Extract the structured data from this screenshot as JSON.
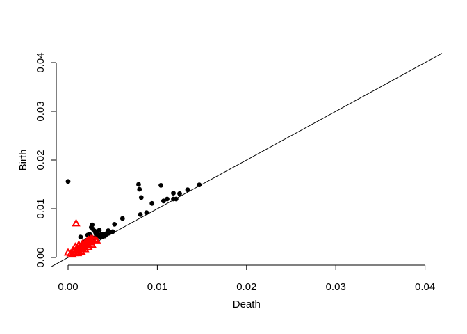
{
  "chart_data": {
    "type": "scatter",
    "title": "",
    "xlabel": "Death",
    "ylabel": "Birth",
    "xlim": [
      0,
      0.04
    ],
    "ylim": [
      0,
      0.04
    ],
    "x_ticks": [
      "0.00",
      "0.01",
      "0.02",
      "0.03",
      "0.04"
    ],
    "y_ticks": [
      "0.00",
      "0.01",
      "0.02",
      "0.03",
      "0.04"
    ],
    "grid": false,
    "legend": null,
    "diagonal_line": {
      "from": [
        0,
        0
      ],
      "to": [
        0.04,
        0.04
      ]
    },
    "series": [
      {
        "marker": "filled-circle",
        "color": "#000000",
        "points": [
          [
            0.0,
            0.0156
          ],
          [
            0.0079,
            0.015
          ],
          [
            0.008,
            0.014
          ],
          [
            0.0082,
            0.0123
          ],
          [
            0.0104,
            0.0148
          ],
          [
            0.0111,
            0.012
          ],
          [
            0.0118,
            0.0132
          ],
          [
            0.0118,
            0.012
          ],
          [
            0.0121,
            0.012
          ],
          [
            0.0125,
            0.0131
          ],
          [
            0.0134,
            0.0139
          ],
          [
            0.0147,
            0.0149
          ],
          [
            0.0107,
            0.0116
          ],
          [
            0.0094,
            0.0111
          ],
          [
            0.0088,
            0.0092
          ],
          [
            0.0081,
            0.0088
          ],
          [
            0.0061,
            0.008
          ],
          [
            0.0052,
            0.0068
          ],
          [
            0.0045,
            0.0055
          ],
          [
            0.004,
            0.0048
          ],
          [
            0.0027,
            0.0067
          ],
          [
            0.0026,
            0.0062
          ],
          [
            0.0028,
            0.0058
          ],
          [
            0.003,
            0.0054
          ],
          [
            0.0035,
            0.0056
          ],
          [
            0.0033,
            0.005
          ],
          [
            0.0024,
            0.0048
          ],
          [
            0.0022,
            0.0046
          ],
          [
            0.0038,
            0.0045
          ],
          [
            0.0042,
            0.0046
          ],
          [
            0.0046,
            0.005
          ],
          [
            0.0048,
            0.0052
          ],
          [
            0.005,
            0.0053
          ],
          [
            0.0036,
            0.0042
          ],
          [
            0.0039,
            0.0043
          ],
          [
            0.0032,
            0.0043
          ],
          [
            0.0029,
            0.004
          ],
          [
            0.0025,
            0.0037
          ],
          [
            0.0014,
            0.0042
          ],
          [
            0.002,
            0.0035
          ],
          [
            0.0017,
            0.0031
          ],
          [
            0.0043,
            0.0049
          ],
          [
            0.0037,
            0.0047
          ],
          [
            0.0034,
            0.0046
          ],
          [
            0.0031,
            0.0049
          ],
          [
            0.0041,
            0.0044
          ]
        ]
      },
      {
        "marker": "open-triangle",
        "color": "#ff0000",
        "points": [
          [
            0.0009,
            0.007
          ],
          [
            0.0,
            0.001
          ],
          [
            0.0005,
            0.0006
          ],
          [
            0.0007,
            0.0009
          ],
          [
            0.0009,
            0.0011
          ],
          [
            0.001,
            0.0015
          ],
          [
            0.0011,
            0.0018
          ],
          [
            0.0012,
            0.0014
          ],
          [
            0.0013,
            0.0021
          ],
          [
            0.0014,
            0.0017
          ],
          [
            0.0015,
            0.0024
          ],
          [
            0.0016,
            0.0019
          ],
          [
            0.0017,
            0.0027
          ],
          [
            0.0018,
            0.0022
          ],
          [
            0.0019,
            0.003
          ],
          [
            0.002,
            0.0025
          ],
          [
            0.0021,
            0.0033
          ],
          [
            0.0022,
            0.0028
          ],
          [
            0.0023,
            0.0036
          ],
          [
            0.0024,
            0.0031
          ],
          [
            0.0025,
            0.0038
          ],
          [
            0.0026,
            0.0034
          ],
          [
            0.0027,
            0.0039
          ],
          [
            0.0028,
            0.0036
          ],
          [
            0.003,
            0.0037
          ],
          [
            0.0032,
            0.0035
          ],
          [
            0.0008,
            0.0022
          ],
          [
            0.0012,
            0.0026
          ],
          [
            0.0016,
            0.0028
          ],
          [
            0.0006,
            0.0016
          ],
          [
            0.0003,
            0.0008
          ],
          [
            0.0011,
            0.0009
          ],
          [
            0.0015,
            0.0012
          ],
          [
            0.0019,
            0.0017
          ],
          [
            0.0023,
            0.0021
          ],
          [
            0.0027,
            0.0026
          ]
        ]
      }
    ]
  }
}
